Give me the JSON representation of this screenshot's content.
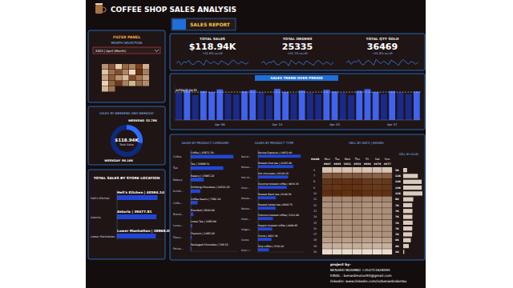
{
  "header": {
    "title": "COFFEE SHOP SALES ANALYSIS",
    "tab": "SALES REPORT"
  },
  "filter_panel": {
    "title": "FILTER PANEL",
    "label": "MONTH SELECTION",
    "selection": "2023 | April (Month)"
  },
  "kpis": [
    {
      "title": "TOTAL SALES",
      "value": "$118.94K",
      "delta": "+31.8% vs LM"
    },
    {
      "title": "TOTAL ORDERS",
      "value": 25335,
      "delta": "+31.7% vs LM"
    },
    {
      "title": "TOTAL QTY SOLD",
      "value": 36469,
      "delta": "+31.8% vs LM"
    }
  ],
  "chart_data": [
    {
      "type": "bar",
      "title": "SALES TREND OVER PERIOD",
      "categories": [
        null,
        null,
        null,
        null,
        null,
        "Apr 06",
        null,
        null,
        null,
        null,
        null,
        null,
        "Apr 13",
        null,
        null,
        null,
        null,
        null,
        null,
        "Apr 20",
        null,
        null,
        null,
        null,
        null,
        null,
        "Apr 27",
        null,
        null,
        null
      ],
      "values": [
        3890,
        4210,
        3560,
        4120,
        3980,
        4350,
        3720,
        3610,
        4080,
        4270,
        3950,
        3480,
        4420,
        4010,
        3770,
        4190,
        3880,
        3650,
        4300,
        4060,
        3820,
        3540,
        4150,
        4390,
        3990,
        3700,
        4110,
        3930,
        3680,
        4060
      ],
      "colors": [
        "#1a2a8a",
        "#3f63f0",
        "#1a2a8a",
        "#3f63f0",
        "#3f63f0",
        "#3f63f0",
        "#1a2a8a",
        "#1a2a8a",
        "#3f63f0",
        "#3f63f0",
        "#1a2a8a",
        "#1a2a8a",
        "#3f63f0",
        "#3f63f0",
        "#1a2a8a",
        "#3f63f0",
        "#1a2a8a",
        "#1a2a8a",
        "#3f63f0",
        "#3f63f0",
        "#1a2a8a",
        "#1a2a8a",
        "#3f63f0",
        "#3f63f0",
        "#3f63f0",
        "#1a2a8a",
        "#3f63f0",
        "#1a2a8a",
        "#1a2a8a",
        "#3f63f0"
      ],
      "ylim": [
        0,
        5000
      ],
      "tick_labels": "x",
      "reference_line": {
        "value": 3962,
        "label": "AVERAGE SALES"
      }
    },
    {
      "type": "line",
      "values": [
        3890,
        4210,
        3560,
        4120,
        3980,
        4350,
        3720,
        3610,
        4080,
        4270,
        3950,
        3480,
        4420,
        4010,
        3770,
        4190,
        3880,
        3650,
        4300,
        4060,
        3820,
        3540,
        4150,
        4390,
        3990,
        3700,
        4110,
        3930,
        3680,
        4060
      ],
      "ylim": [
        3000,
        5000
      ],
      "tick_labels": false,
      "color": "#3d8bff"
    },
    {
      "type": "line",
      "values": [
        830,
        880,
        790,
        860,
        845,
        900,
        805,
        780,
        850,
        875,
        840,
        760,
        910,
        850,
        800,
        870,
        830,
        785,
        890,
        855,
        815,
        770,
        865,
        905,
        845,
        795,
        860,
        840,
        790,
        855
      ],
      "ylim": [
        700,
        1000
      ],
      "tick_labels": false,
      "color": "#3d8bff"
    },
    {
      "type": "line",
      "values": [
        1190,
        1260,
        1130,
        1240,
        1210,
        1290,
        1150,
        1110,
        1230,
        1270,
        1200,
        1100,
        1310,
        1215,
        1160,
        1250,
        1190,
        1120,
        1280,
        1225,
        1170,
        1090,
        1245,
        1300,
        1205,
        1140,
        1235,
        1200,
        1130,
        1225
      ],
      "ylim": [
        1000,
        1400
      ],
      "tick_labels": false,
      "color": "#3d8bff"
    },
    {
      "type": "pie",
      "title": "SALES BY WEEKEND AND WEEKDAY",
      "categories": [
        "WEEKEND",
        "WEEKDAY"
      ],
      "values": [
        32.78,
        86.16
      ],
      "value_labels": [
        "32.78K",
        "86.16K"
      ],
      "colors": [
        "#2f6bff",
        "#0d2a80"
      ],
      "data_labels": true,
      "center_label": "$118.94K",
      "center_sublabel": "Total Sales"
    },
    {
      "type": "bar",
      "orientation": "horizontal",
      "title": "TOTAL SALES BY STORE LOCATION",
      "categories": [
        "Hell's Kitchen",
        "Astoria",
        "Lower Manhattan"
      ],
      "values": [
        40594.14,
        39477.81,
        38868.05
      ],
      "value_labels": [
        "Hell's Kitchen | 40594.14",
        "Astoria | 39477.81",
        "Lower Manhattan | 38868.05"
      ],
      "xlim": [
        0,
        45000
      ],
      "tick_labels": "y",
      "data_labels": true,
      "color": "#2146d6"
    },
    {
      "type": "bar",
      "orientation": "horizontal",
      "title": "SALES BY PRODUCT CATEGORY",
      "categories": [
        "Coffee",
        "Tea",
        "Bakery",
        "Drinki...",
        "Coffe...",
        "Brand...",
        "Loose...",
        "Flavo...",
        "Packa..."
      ],
      "values": [
        45871.3,
        34998.51,
        13987.22,
        10316.25,
        7386.1,
        2846.0,
        1682.9,
        1083.2,
        768.52
      ],
      "value_labels": [
        "Coffee | 45871.30",
        "Tea | 34998.51",
        "Bakery | 13987.22",
        "Drinking Chocolate | 10316.25",
        "Coffee beans | 7386.10",
        "Branded | 2846.00",
        "Loose Tea | 1682.90",
        "Flavours | 1083.20",
        "Packaged Chocolate | 768.52"
      ],
      "xlim": [
        0,
        50000
      ],
      "tick_labels": "y",
      "data_labels": true,
      "color": "#2146d6"
    },
    {
      "type": "bar",
      "orientation": "horizontal",
      "title": "SALES BY PRODUCT TYPE",
      "categories": [
        "Barist...",
        "Brewe...",
        "Hot ch...",
        "Gour...",
        "Brewe...",
        "Brewe...",
        "Prem...",
        "Organ...",
        "Scone",
        "Drip c..."
      ],
      "values": [
        14652.4,
        12105.6,
        10316.25,
        9874.35,
        6140.5,
        6020.75,
        5112.8,
        4890.65,
        4621.3,
        3710.2
      ],
      "value_labels": [
        "Barista Espresso | 14652.40",
        "Brewed Chai tea | 12105.60",
        "Hot chocolate | 10316.25",
        "Gourmet brewed coffee | 9874.35",
        "Brewed Black tea | 6140.50",
        "Brewed herbal tea | 6020.75",
        "Premium brewed coffee | 5112.80",
        "Organic brewed coffee | 4890.65",
        "Scone | 4621.30",
        "Drip coffee | 3710.20"
      ],
      "xlim": [
        0,
        16000
      ],
      "tick_labels": "y",
      "data_labels": true,
      "color": "#2146d6"
    },
    {
      "type": "heatmap",
      "title": "SELL BY DAYS | HOURS",
      "corner_label": "HOUR",
      "categories": [
        "Mon",
        "Tue",
        "Wed",
        "Thu",
        "Fri",
        "Sat",
        "Sun"
      ],
      "column_totals": [
        4907,
        4933,
        5051,
        4554,
        4934,
        4479,
        4477
      ],
      "hours": [
        6,
        7,
        8,
        9,
        10,
        11,
        12,
        13,
        14,
        15,
        16,
        17,
        18,
        19,
        20
      ],
      "cells": [
        [
          420,
          450,
          430,
          460,
          410,
          440,
          400
        ],
        [
          1650,
          1700,
          1620,
          1680,
          1590,
          1560,
          1600
        ],
        [
          2050,
          2100,
          2080,
          2120,
          2010,
          1990,
          2030
        ],
        [
          2080,
          2060,
          2110,
          2090,
          2040,
          2000,
          2050
        ],
        [
          2150,
          2180,
          2120,
          2200,
          2110,
          2090,
          2130
        ],
        [
          1130,
          1150,
          1110,
          1170,
          1090,
          1080,
          1120
        ],
        [
          1010,
          1030,
          990,
          1050,
          980,
          970,
          1000
        ],
        [
          1040,
          1060,
          1020,
          1070,
          1000,
          990,
          1030
        ],
        [
          1030,
          1050,
          1010,
          1060,
          990,
          980,
          1020
        ],
        [
          1060,
          1080,
          1040,
          1090,
          1020,
          1010,
          1050
        ],
        [
          1020,
          1040,
          1000,
          1050,
          980,
          970,
          1010
        ],
        [
          1000,
          1020,
          980,
          1030,
          960,
          950,
          990
        ],
        [
          860,
          880,
          840,
          890,
          820,
          810,
          850
        ],
        [
          640,
          660,
          620,
          670,
          600,
          590,
          630
        ],
        [
          120,
          130,
          110,
          140,
          100,
          90,
          120
        ]
      ],
      "color_range": [
        0,
        2200
      ],
      "row_totals_title": "SELL BY HOUR",
      "row_totals": [
        3010,
        11400,
        14380,
        14430,
        14980,
        7850,
        7030,
        7210,
        7140,
        7350,
        7070,
        6930,
        5950,
        4410,
        810
      ],
      "row_total_labels": [
        "3K",
        "11K",
        "14K",
        "14K",
        "15K",
        "8K",
        "7K",
        "7K",
        "7K",
        "7K",
        "7K",
        "7K",
        "6K",
        "4K",
        "1K"
      ]
    }
  ],
  "footer": {
    "lines": [
      "project by-",
      "BENARD NDAMBO +254711628595",
      "EMAIL : benardmuton93@gmail.com",
      "linkedin: www.linkedin.com/in/benardndambo"
    ]
  }
}
